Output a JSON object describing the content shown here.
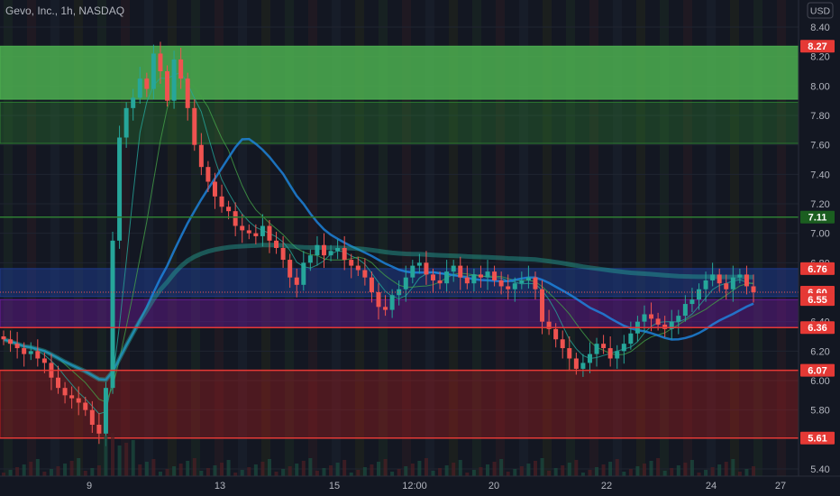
{
  "header": {
    "symbol_title": "Gevo, Inc., 1h, NASDAQ",
    "currency": "USD"
  },
  "chart_data": {
    "type": "candlestick",
    "ylim": [
      5.35,
      8.48
    ],
    "y_ticks": [
      "8.40",
      "8.20",
      "8.00",
      "7.80",
      "7.60",
      "7.40",
      "7.20",
      "7.00",
      "6.80",
      "6.60",
      "6.40",
      "6.20",
      "6.00",
      "5.80",
      "5.40"
    ],
    "x_ticks": [
      "9",
      "13",
      "15",
      "12:00",
      "20",
      "22",
      "24",
      "27"
    ],
    "price_labels": [
      {
        "text": "8.27",
        "value": 8.27,
        "color": "#e53935"
      },
      {
        "text": "7.11",
        "value": 7.11,
        "color": "#1b5e20"
      },
      {
        "text": "6.76",
        "value": 6.76,
        "color": "#e53935"
      },
      {
        "text": "6.60",
        "value": 6.6,
        "color": "#e53935"
      },
      {
        "text": "6.55",
        "value": 6.55,
        "color": "#e53935"
      },
      {
        "text": "6.36",
        "value": 6.36,
        "color": "#e53935"
      },
      {
        "text": "6.07",
        "value": 6.07,
        "color": "#e53935"
      },
      {
        "text": "5.61",
        "value": 5.61,
        "color": "#e53935"
      }
    ],
    "zones": [
      {
        "from": 7.91,
        "to": 8.27,
        "color": "#4caf50",
        "opacity": 0.85
      },
      {
        "from": 7.61,
        "to": 7.89,
        "color": "#2e7d32",
        "opacity": 0.35
      },
      {
        "from": 6.57,
        "to": 6.76,
        "color": "#1e3a8a",
        "opacity": 0.55
      },
      {
        "from": 6.36,
        "to": 6.55,
        "color": "#6a1b9a",
        "opacity": 0.45
      },
      {
        "from": 5.61,
        "to": 6.07,
        "color": "#b71c1c",
        "opacity": 0.35
      }
    ],
    "levels": [
      {
        "value": 7.11,
        "color": "#2e7d32"
      },
      {
        "value": 6.36,
        "color": "#e53935"
      },
      {
        "value": 6.07,
        "color": "#e53935"
      },
      {
        "value": 5.61,
        "color": "#e53935"
      }
    ],
    "candles": [
      6.28,
      6.25,
      6.22,
      6.18,
      6.2,
      6.15,
      6.12,
      6.02,
      5.95,
      5.9,
      5.88,
      5.85,
      5.8,
      5.7,
      5.64,
      5.95,
      6.95,
      7.65,
      7.85,
      7.92,
      8.05,
      7.98,
      8.22,
      8.1,
      7.9,
      8.18,
      8.05,
      7.85,
      7.6,
      7.45,
      7.35,
      7.25,
      7.18,
      7.15,
      7.05,
      7.02,
      7.0,
      6.98,
      7.05,
      6.95,
      6.9,
      6.82,
      6.7,
      6.65,
      6.8,
      6.85,
      6.92,
      6.85,
      6.88,
      6.9,
      6.82,
      6.78,
      6.75,
      6.7,
      6.6,
      6.5,
      6.48,
      6.58,
      6.62,
      6.7,
      6.78,
      6.8,
      6.72,
      6.68,
      6.66,
      6.74,
      6.78,
      6.7,
      6.66,
      6.72,
      6.7,
      6.74,
      6.68,
      6.64,
      6.62,
      6.66,
      6.68,
      6.7,
      6.62,
      6.4,
      6.35,
      6.28,
      6.22,
      6.15,
      6.08,
      6.12,
      6.18,
      6.25,
      6.22,
      6.15,
      6.2,
      6.25,
      6.32,
      6.4,
      6.45,
      6.42,
      6.38,
      6.35,
      6.4,
      6.44,
      6.52,
      6.55,
      6.62,
      6.68,
      6.72,
      6.66,
      6.62,
      6.7,
      6.72,
      6.64,
      6.6
    ]
  }
}
